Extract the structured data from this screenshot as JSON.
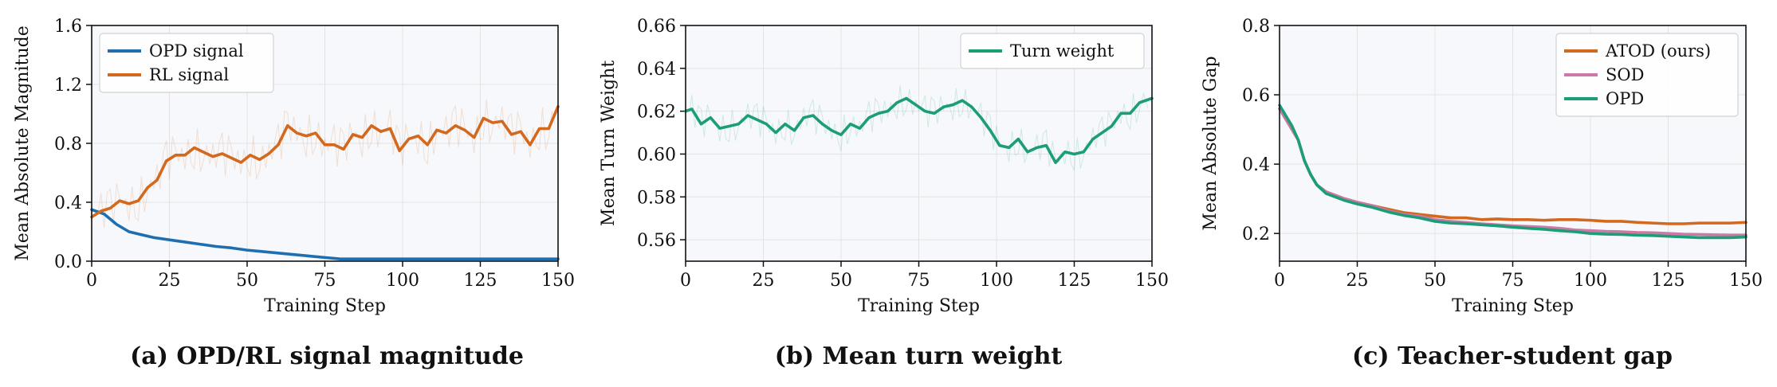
{
  "colors": {
    "opd": "#1f6fb0",
    "rl": "#d2691e",
    "turn": "#1b9e77",
    "sod": "#cc79a7",
    "grid": "#e3e3e3",
    "plot_bg": "#f7f8fb"
  },
  "chart_data": [
    {
      "type": "line",
      "caption": "(a) OPD/RL signal magnitude",
      "xlabel": "Training Step",
      "ylabel": "Mean Absolute Magnitude",
      "xlim": [
        0,
        150
      ],
      "ylim": [
        0,
        1.6
      ],
      "xticks": [
        "0",
        "25",
        "50",
        "75",
        "100",
        "125",
        "150"
      ],
      "yticks": [
        "0.0",
        "0.4",
        "0.8",
        "1.2",
        "1.6"
      ],
      "grid": true,
      "legend_position": "top-left",
      "series": [
        {
          "name": "OPD signal",
          "color": "#1f6fb0",
          "x": [
            0,
            4,
            8,
            12,
            16,
            20,
            25,
            30,
            35,
            40,
            45,
            50,
            55,
            60,
            65,
            70,
            75,
            80,
            90,
            100,
            110,
            120,
            130,
            140,
            150
          ],
          "y": [
            0.35,
            0.32,
            0.25,
            0.2,
            0.18,
            0.16,
            0.145,
            0.13,
            0.115,
            0.1,
            0.09,
            0.075,
            0.065,
            0.055,
            0.045,
            0.035,
            0.025,
            0.015,
            0.015,
            0.015,
            0.015,
            0.015,
            0.015,
            0.015,
            0.015
          ]
        },
        {
          "name": "RL signal",
          "color": "#d2691e",
          "x": [
            0,
            3,
            6,
            9,
            12,
            15,
            18,
            21,
            24,
            27,
            30,
            33,
            36,
            39,
            42,
            45,
            48,
            51,
            54,
            57,
            60,
            63,
            66,
            69,
            72,
            75,
            78,
            81,
            84,
            87,
            90,
            93,
            96,
            99,
            102,
            105,
            108,
            111,
            114,
            117,
            120,
            123,
            126,
            129,
            132,
            135,
            138,
            141,
            144,
            147,
            150
          ],
          "y": [
            0.3,
            0.34,
            0.36,
            0.41,
            0.39,
            0.41,
            0.5,
            0.55,
            0.68,
            0.72,
            0.72,
            0.77,
            0.74,
            0.71,
            0.73,
            0.7,
            0.67,
            0.72,
            0.69,
            0.73,
            0.79,
            0.92,
            0.87,
            0.85,
            0.87,
            0.79,
            0.79,
            0.76,
            0.86,
            0.84,
            0.92,
            0.88,
            0.9,
            0.75,
            0.83,
            0.85,
            0.79,
            0.89,
            0.87,
            0.92,
            0.89,
            0.84,
            0.97,
            0.94,
            0.95,
            0.86,
            0.88,
            0.79,
            0.9,
            0.9,
            1.05
          ]
        }
      ]
    },
    {
      "type": "line",
      "caption": "(b) Mean turn weight",
      "xlabel": "Training Step",
      "ylabel": "Mean Turn Weight",
      "xlim": [
        0,
        150
      ],
      "ylim": [
        0.55,
        0.66
      ],
      "xticks": [
        "0",
        "25",
        "50",
        "75",
        "100",
        "125",
        "150"
      ],
      "yticks": [
        "0.56",
        "0.58",
        "0.60",
        "0.62",
        "0.64",
        "0.66"
      ],
      "grid": true,
      "legend_position": "top-right",
      "series": [
        {
          "name": "Turn weight",
          "color": "#1b9e77",
          "x": [
            0,
            2,
            5,
            8,
            11,
            14,
            17,
            20,
            23,
            26,
            29,
            32,
            35,
            38,
            41,
            44,
            47,
            50,
            53,
            56,
            59,
            62,
            65,
            68,
            71,
            74,
            77,
            80,
            83,
            86,
            89,
            92,
            95,
            98,
            101,
            104,
            107,
            110,
            113,
            116,
            119,
            122,
            125,
            128,
            131,
            134,
            137,
            140,
            143,
            146,
            150
          ],
          "y": [
            0.62,
            0.621,
            0.614,
            0.617,
            0.612,
            0.613,
            0.614,
            0.618,
            0.616,
            0.614,
            0.61,
            0.614,
            0.611,
            0.617,
            0.618,
            0.614,
            0.611,
            0.609,
            0.614,
            0.612,
            0.617,
            0.619,
            0.62,
            0.624,
            0.626,
            0.623,
            0.62,
            0.619,
            0.622,
            0.623,
            0.625,
            0.622,
            0.617,
            0.611,
            0.604,
            0.603,
            0.607,
            0.601,
            0.603,
            0.604,
            0.596,
            0.601,
            0.6,
            0.601,
            0.607,
            0.61,
            0.613,
            0.619,
            0.619,
            0.624,
            0.626
          ]
        }
      ]
    },
    {
      "type": "line",
      "caption": "(c) Teacher-student gap",
      "xlabel": "Training Step",
      "ylabel": "Mean Absolute Gap",
      "xlim": [
        0,
        150
      ],
      "ylim": [
        0.12,
        0.8
      ],
      "xticks": [
        "0",
        "25",
        "50",
        "75",
        "100",
        "125",
        "150"
      ],
      "yticks": [
        "0.2",
        "0.4",
        "0.6",
        "0.8"
      ],
      "grid": true,
      "legend_position": "top-right",
      "series": [
        {
          "name": "ATOD (ours)",
          "color": "#d2691e",
          "x": [
            0,
            2,
            4,
            6,
            8,
            10,
            12,
            15,
            18,
            21,
            25,
            30,
            35,
            40,
            45,
            50,
            55,
            60,
            65,
            70,
            75,
            80,
            85,
            90,
            95,
            100,
            105,
            110,
            115,
            120,
            125,
            130,
            135,
            140,
            145,
            150
          ],
          "y": [
            0.56,
            0.53,
            0.5,
            0.47,
            0.41,
            0.37,
            0.34,
            0.32,
            0.31,
            0.3,
            0.29,
            0.28,
            0.27,
            0.26,
            0.255,
            0.25,
            0.245,
            0.245,
            0.24,
            0.242,
            0.24,
            0.24,
            0.238,
            0.24,
            0.24,
            0.238,
            0.235,
            0.235,
            0.232,
            0.23,
            0.228,
            0.228,
            0.23,
            0.23,
            0.23,
            0.232
          ]
        },
        {
          "name": "SOD",
          "color": "#cc79a7",
          "x": [
            0,
            2,
            4,
            6,
            8,
            10,
            12,
            15,
            18,
            21,
            25,
            30,
            35,
            40,
            45,
            50,
            55,
            60,
            65,
            70,
            75,
            80,
            85,
            90,
            95,
            100,
            105,
            110,
            115,
            120,
            125,
            130,
            135,
            140,
            145,
            150
          ],
          "y": [
            0.56,
            0.53,
            0.5,
            0.47,
            0.41,
            0.37,
            0.34,
            0.32,
            0.31,
            0.3,
            0.29,
            0.28,
            0.265,
            0.255,
            0.25,
            0.24,
            0.235,
            0.232,
            0.228,
            0.225,
            0.222,
            0.22,
            0.218,
            0.215,
            0.21,
            0.208,
            0.206,
            0.205,
            0.203,
            0.202,
            0.2,
            0.198,
            0.197,
            0.196,
            0.195,
            0.195
          ]
        },
        {
          "name": "OPD",
          "color": "#1b9e77",
          "x": [
            0,
            2,
            4,
            6,
            8,
            10,
            12,
            15,
            18,
            21,
            25,
            30,
            35,
            40,
            45,
            50,
            55,
            60,
            65,
            70,
            75,
            80,
            85,
            90,
            95,
            100,
            105,
            110,
            115,
            120,
            125,
            130,
            135,
            140,
            145,
            150
          ],
          "y": [
            0.57,
            0.54,
            0.51,
            0.47,
            0.41,
            0.37,
            0.34,
            0.315,
            0.305,
            0.295,
            0.285,
            0.275,
            0.262,
            0.252,
            0.245,
            0.235,
            0.23,
            0.228,
            0.225,
            0.222,
            0.218,
            0.215,
            0.212,
            0.208,
            0.205,
            0.2,
            0.198,
            0.197,
            0.195,
            0.194,
            0.192,
            0.19,
            0.188,
            0.188,
            0.188,
            0.19
          ]
        }
      ]
    }
  ]
}
